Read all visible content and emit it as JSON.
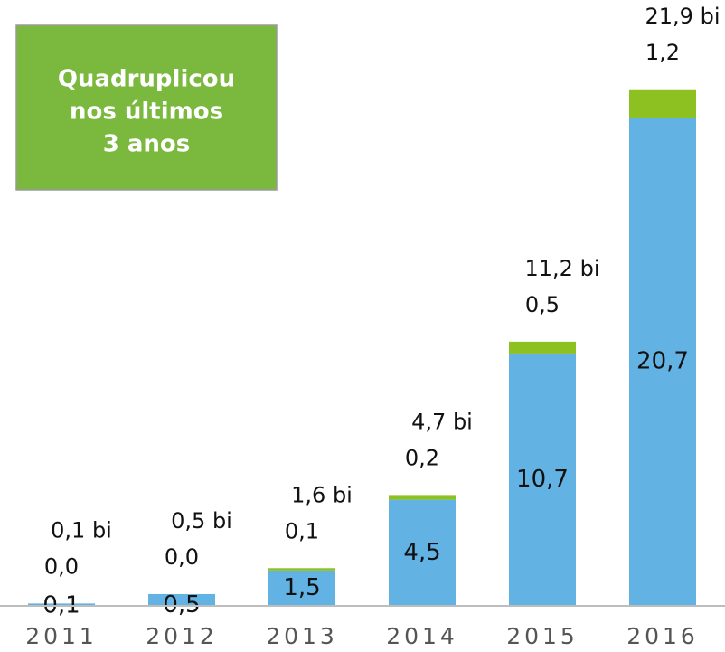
{
  "chart_data": {
    "type": "stacked_bar",
    "categories": [
      "2011",
      "2012",
      "2013",
      "2014",
      "2015",
      "2016"
    ],
    "series": [
      {
        "color": "#62b3e4",
        "values": [
          0.1,
          0.5,
          1.5,
          4.5,
          10.7,
          20.7
        ],
        "value_labels": [
          "0,1",
          "0,5",
          "1,5",
          "4,5",
          "10,7",
          "20,7"
        ]
      },
      {
        "color": "#8dc021",
        "values": [
          0.0,
          0.0,
          0.1,
          0.2,
          0.5,
          1.2
        ],
        "value_labels": [
          "0,0",
          "0,0",
          "0,1",
          "0,2",
          "0,5",
          "1,2"
        ]
      }
    ],
    "totals": [
      0.1,
      0.5,
      1.6,
      4.7,
      11.2,
      21.9
    ],
    "total_labels": [
      "0,1 bi",
      "0,5 bi",
      "1,6 bi",
      "4,7 bi",
      "11,2 bi",
      "21,9 bi"
    ],
    "ylim": [
      0,
      24
    ],
    "annotation": [
      "Quadruplicou",
      "nos últimos",
      "3 anos"
    ]
  }
}
